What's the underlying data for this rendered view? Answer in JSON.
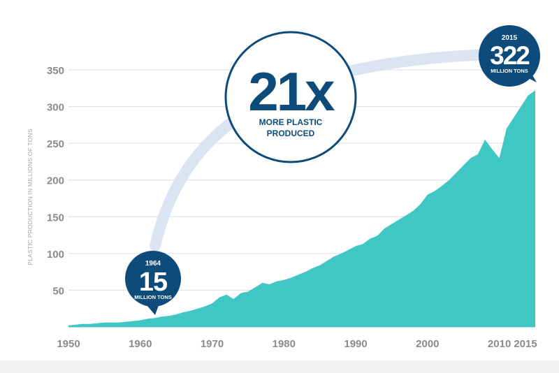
{
  "chart_data": {
    "type": "area",
    "title": "",
    "xlabel": "",
    "ylabel": "PLASTIC PRODUCTION IN MILLIONS OF TONS",
    "xlim": [
      1950,
      2015
    ],
    "ylim": [
      0,
      350
    ],
    "grid": true,
    "x_ticks": [
      "1950",
      "1960",
      "1970",
      "1980",
      "1990",
      "2000",
      "2010",
      "2015"
    ],
    "y_ticks": [
      "50",
      "100",
      "150",
      "200",
      "250",
      "300",
      "350"
    ],
    "series": [
      {
        "x": [
          1950,
          1951,
          1952,
          1953,
          1954,
          1955,
          1956,
          1957,
          1958,
          1959,
          1960,
          1961,
          1962,
          1963,
          1964,
          1965,
          1966,
          1967,
          1968,
          1969,
          1970,
          1971,
          1972,
          1973,
          1974,
          1975,
          1976,
          1977,
          1978,
          1979,
          1980,
          1981,
          1982,
          1983,
          1984,
          1985,
          1986,
          1987,
          1988,
          1989,
          1990,
          1991,
          1992,
          1993,
          1994,
          1995,
          1996,
          1997,
          1998,
          1999,
          2000,
          2001,
          2002,
          2003,
          2004,
          2005,
          2006,
          2007,
          2008,
          2009,
          2010,
          2011,
          2012,
          2013,
          2014,
          2015
        ],
        "values": [
          2,
          3,
          4,
          4,
          5,
          6,
          6,
          6,
          7,
          8,
          9,
          11,
          12,
          14,
          15,
          17,
          20,
          22,
          25,
          28,
          32,
          40,
          44,
          38,
          46,
          48,
          54,
          60,
          58,
          62,
          64,
          67,
          71,
          75,
          80,
          84,
          90,
          96,
          100,
          105,
          110,
          113,
          120,
          124,
          134,
          140,
          146,
          152,
          158,
          167,
          180,
          185,
          192,
          200,
          210,
          220,
          230,
          235,
          255,
          242,
          230,
          270,
          285,
          300,
          315,
          322
        ]
      }
    ],
    "annotations": {
      "start": {
        "year": "1964",
        "value": "15",
        "unit": "MILLION TONS"
      },
      "end": {
        "year": "2015",
        "value": "322",
        "unit": "MILLION TONS"
      },
      "ratio": {
        "value": "21x",
        "line1": "MORE PLASTIC",
        "line2": "PRODUCED"
      }
    },
    "colors": {
      "area": "#41c6c6",
      "arc": "#dbe4f2",
      "badge": "#0c4b7a",
      "grid": "#dcdcdc",
      "tick": "#8a8a8a",
      "ylabel": "#a5a5a5"
    }
  }
}
